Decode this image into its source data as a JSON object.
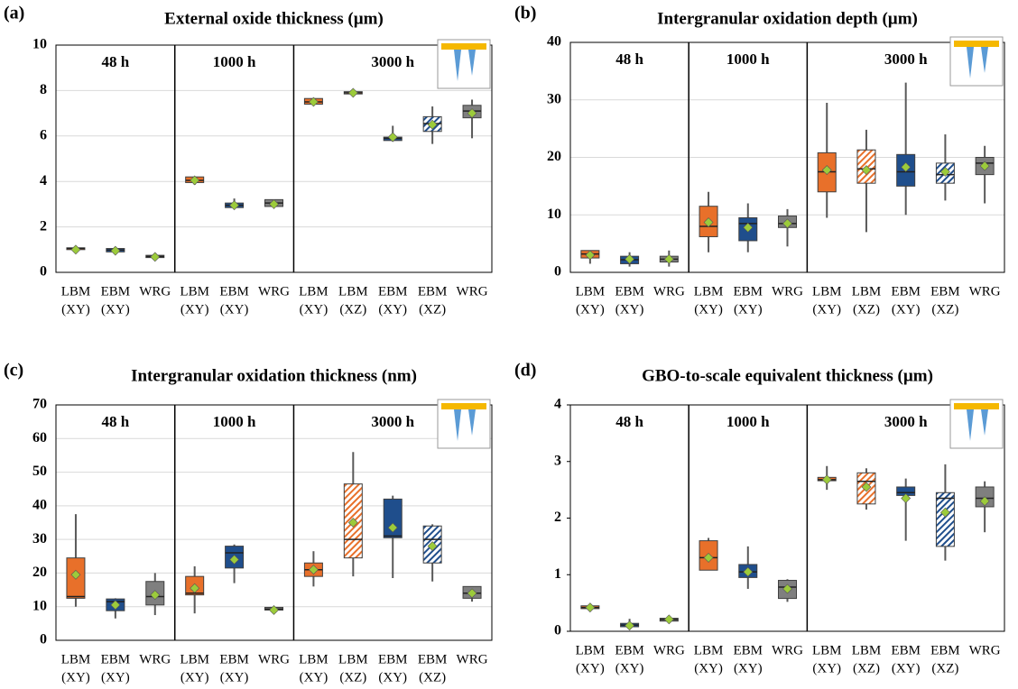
{
  "chart_data": [
    {
      "type": "box",
      "label": "(a)",
      "title": "External oxide thickness (µm)",
      "ylim": [
        0,
        10
      ],
      "yticks": [
        0,
        2,
        4,
        6,
        8,
        10
      ],
      "grid": true,
      "mean_color": "#9ccb3b",
      "groups": [
        {
          "label": "48 h",
          "boxes": [
            {
              "category": [
                "LBM",
                "(XY)"
              ],
              "color": "#e8702a",
              "hatched": false,
              "min": 1.0,
              "q1": 1.0,
              "median": 1.05,
              "q3": 1.08,
              "max": 1.08,
              "mean": 1.0
            },
            {
              "category": [
                "EBM",
                "(XY)"
              ],
              "color": "#1f4e8c",
              "hatched": false,
              "min": 0.88,
              "q1": 0.9,
              "median": 0.98,
              "q3": 1.05,
              "max": 1.07,
              "mean": 0.95
            },
            {
              "category": [
                "WRG"
              ],
              "color": "#7f7f7f",
              "hatched": false,
              "min": 0.63,
              "q1": 0.65,
              "median": 0.7,
              "q3": 0.75,
              "max": 0.77,
              "mean": 0.68
            }
          ]
        },
        {
          "label": "1000 h",
          "boxes": [
            {
              "category": [
                "LBM",
                "(XY)"
              ],
              "color": "#e8702a",
              "hatched": false,
              "min": 3.85,
              "q1": 3.95,
              "median": 4.05,
              "q3": 4.2,
              "max": 4.2,
              "mean": 4.05
            },
            {
              "category": [
                "EBM",
                "(XY)"
              ],
              "color": "#1f4e8c",
              "hatched": false,
              "min": 2.8,
              "q1": 2.85,
              "median": 2.95,
              "q3": 3.05,
              "max": 3.25,
              "mean": 2.95
            },
            {
              "category": [
                "WRG"
              ],
              "color": "#7f7f7f",
              "hatched": false,
              "min": 2.85,
              "q1": 2.9,
              "median": 3.05,
              "q3": 3.2,
              "max": 3.2,
              "mean": 3.0
            }
          ]
        },
        {
          "label": "3000 h",
          "boxes": [
            {
              "category": [
                "LBM",
                "(XY)"
              ],
              "color": "#e8702a",
              "hatched": false,
              "min": 7.35,
              "q1": 7.4,
              "median": 7.5,
              "q3": 7.65,
              "max": 7.65,
              "mean": 7.5
            },
            {
              "category": [
                "LBM",
                "(XZ)"
              ],
              "color": "#e8702a",
              "hatched": true,
              "min": 7.85,
              "q1": 7.85,
              "median": 7.9,
              "q3": 7.95,
              "max": 7.95,
              "mean": 7.9
            },
            {
              "category": [
                "EBM",
                "(XY)"
              ],
              "color": "#1f4e8c",
              "hatched": false,
              "min": 5.75,
              "q1": 5.8,
              "median": 5.9,
              "q3": 5.95,
              "max": 6.45,
              "mean": 5.95
            },
            {
              "category": [
                "EBM",
                "(XZ)"
              ],
              "color": "#1f4e8c",
              "hatched": true,
              "min": 5.65,
              "q1": 6.2,
              "median": 6.55,
              "q3": 6.85,
              "max": 7.3,
              "mean": 6.5
            },
            {
              "category": [
                "WRG"
              ],
              "color": "#7f7f7f",
              "hatched": false,
              "min": 5.9,
              "q1": 6.8,
              "median": 7.1,
              "q3": 7.35,
              "max": 7.6,
              "mean": 7.0
            }
          ]
        }
      ]
    },
    {
      "type": "box",
      "label": "(b)",
      "title": "Intergranular oxidation depth (µm)",
      "ylim": [
        0,
        40
      ],
      "yticks": [
        0,
        10,
        20,
        30,
        40
      ],
      "grid": true,
      "mean_color": "#9ccb3b",
      "groups": [
        {
          "label": "48 h",
          "boxes": [
            {
              "category": [
                "LBM",
                "(XY)"
              ],
              "color": "#e8702a",
              "hatched": false,
              "min": 1.5,
              "q1": 2.5,
              "median": 3.2,
              "q3": 3.8,
              "max": 3.8,
              "mean": 3.0
            },
            {
              "category": [
                "EBM",
                "(XY)"
              ],
              "color": "#1f4e8c",
              "hatched": false,
              "min": 1.0,
              "q1": 1.5,
              "median": 2.2,
              "q3": 2.8,
              "max": 3.5,
              "mean": 2.3
            },
            {
              "category": [
                "WRG"
              ],
              "color": "#7f7f7f",
              "hatched": false,
              "min": 1.0,
              "q1": 1.8,
              "median": 2.3,
              "q3": 2.8,
              "max": 3.8,
              "mean": 2.3
            }
          ]
        },
        {
          "label": "1000 h",
          "boxes": [
            {
              "category": [
                "LBM",
                "(XY)"
              ],
              "color": "#e8702a",
              "hatched": false,
              "min": 3.5,
              "q1": 6.2,
              "median": 8,
              "q3": 11.5,
              "max": 14,
              "mean": 8.7
            },
            {
              "category": [
                "EBM",
                "(XY)"
              ],
              "color": "#1f4e8c",
              "hatched": false,
              "min": 3.5,
              "q1": 5.5,
              "median": 8.5,
              "q3": 9.5,
              "max": 12,
              "mean": 7.8
            },
            {
              "category": [
                "WRG"
              ],
              "color": "#7f7f7f",
              "hatched": false,
              "min": 4.5,
              "q1": 7.8,
              "median": 8.5,
              "q3": 9.8,
              "max": 11,
              "mean": 8.5
            }
          ]
        },
        {
          "label": "3000 h",
          "boxes": [
            {
              "category": [
                "LBM",
                "(XY)"
              ],
              "color": "#e8702a",
              "hatched": false,
              "min": 9.5,
              "q1": 14,
              "median": 17.5,
              "q3": 20.8,
              "max": 29.5,
              "mean": 17.8
            },
            {
              "category": [
                "LBM",
                "(XZ)"
              ],
              "color": "#e8702a",
              "hatched": true,
              "min": 7,
              "q1": 15.5,
              "median": 18,
              "q3": 21.3,
              "max": 24.8,
              "mean": 17.8
            },
            {
              "category": [
                "EBM",
                "(XY)"
              ],
              "color": "#1f4e8c",
              "hatched": false,
              "min": 10,
              "q1": 15,
              "median": 17.5,
              "q3": 20.5,
              "max": 33,
              "mean": 18.3
            },
            {
              "category": [
                "EBM",
                "(XZ)"
              ],
              "color": "#1f4e8c",
              "hatched": true,
              "min": 12.5,
              "q1": 15.5,
              "median": 17,
              "q3": 19,
              "max": 24,
              "mean": 17.5
            },
            {
              "category": [
                "WRG"
              ],
              "color": "#7f7f7f",
              "hatched": false,
              "min": 12,
              "q1": 17,
              "median": 19,
              "q3": 20,
              "max": 22,
              "mean": 18.5
            }
          ]
        }
      ]
    },
    {
      "type": "box",
      "label": "(c)",
      "title": "Intergranular oxidation thickness (nm)",
      "ylim": [
        0,
        70
      ],
      "yticks": [
        0,
        10,
        20,
        30,
        40,
        50,
        60,
        70
      ],
      "grid": true,
      "mean_color": "#9ccb3b",
      "groups": [
        {
          "label": "48 h",
          "boxes": [
            {
              "category": [
                "LBM",
                "(XY)"
              ],
              "color": "#e8702a",
              "hatched": false,
              "min": 10,
              "q1": 12.5,
              "median": 13,
              "q3": 24.5,
              "max": 37.5,
              "mean": 19.5
            },
            {
              "category": [
                "EBM",
                "(XY)"
              ],
              "color": "#1f4e8c",
              "hatched": false,
              "min": 6.5,
              "q1": 8.8,
              "median": 11.5,
              "q3": 12.3,
              "max": 12.5,
              "mean": 10.5
            },
            {
              "category": [
                "WRG"
              ],
              "color": "#7f7f7f",
              "hatched": false,
              "min": 7.5,
              "q1": 10.5,
              "median": 13,
              "q3": 17.5,
              "max": 20,
              "mean": 13.5
            }
          ]
        },
        {
          "label": "1000 h",
          "boxes": [
            {
              "category": [
                "LBM",
                "(XY)"
              ],
              "color": "#e8702a",
              "hatched": false,
              "min": 8,
              "q1": 13.5,
              "median": 14,
              "q3": 19,
              "max": 22,
              "mean": 15.5
            },
            {
              "category": [
                "EBM",
                "(XY)"
              ],
              "color": "#1f4e8c",
              "hatched": false,
              "min": 17,
              "q1": 21.5,
              "median": 26,
              "q3": 28,
              "max": 28.5,
              "mean": 24
            },
            {
              "category": [
                "WRG"
              ],
              "color": "#7f7f7f",
              "hatched": false,
              "min": 8.5,
              "q1": 9,
              "median": 9.3,
              "q3": 9.8,
              "max": 9.8,
              "mean": 9
            }
          ]
        },
        {
          "label": "3000 h",
          "boxes": [
            {
              "category": [
                "LBM",
                "(XY)"
              ],
              "color": "#e8702a",
              "hatched": false,
              "min": 16,
              "q1": 19,
              "median": 21,
              "q3": 23,
              "max": 26.5,
              "mean": 21
            },
            {
              "category": [
                "LBM",
                "(XZ)"
              ],
              "color": "#e8702a",
              "hatched": true,
              "min": 19,
              "q1": 24.5,
              "median": 30,
              "q3": 46.5,
              "max": 56,
              "mean": 35
            },
            {
              "category": [
                "EBM",
                "(XY)"
              ],
              "color": "#1f4e8c",
              "hatched": false,
              "min": 18.5,
              "q1": 30.5,
              "median": 31,
              "q3": 42,
              "max": 43,
              "mean": 33.5
            },
            {
              "category": [
                "EBM",
                "(XZ)"
              ],
              "color": "#1f4e8c",
              "hatched": true,
              "min": 17.5,
              "q1": 23,
              "median": 30,
              "q3": 34,
              "max": 34.5,
              "mean": 28
            },
            {
              "category": [
                "WRG"
              ],
              "color": "#7f7f7f",
              "hatched": false,
              "min": 11.5,
              "q1": 12.5,
              "median": 14,
              "q3": 16,
              "max": 16,
              "mean": 14
            }
          ]
        }
      ]
    },
    {
      "type": "box",
      "label": "(d)",
      "title": "GBO-to-scale equivalent thickness (µm)",
      "ylim": [
        0,
        4
      ],
      "yticks": [
        0,
        1,
        2,
        3,
        4
      ],
      "grid": false,
      "mean_color": "#9ccb3b",
      "groups": [
        {
          "label": "48 h",
          "boxes": [
            {
              "category": [
                "LBM",
                "(XY)"
              ],
              "color": "#e8702a",
              "hatched": false,
              "min": 0.38,
              "q1": 0.4,
              "median": 0.42,
              "q3": 0.45,
              "max": 0.47,
              "mean": 0.42
            },
            {
              "category": [
                "EBM",
                "(XY)"
              ],
              "color": "#1f4e8c",
              "hatched": false,
              "min": 0.03,
              "q1": 0.08,
              "median": 0.11,
              "q3": 0.14,
              "max": 0.22,
              "mean": 0.1
            },
            {
              "category": [
                "WRG"
              ],
              "color": "#7f7f7f",
              "hatched": false,
              "min": 0.17,
              "q1": 0.18,
              "median": 0.21,
              "q3": 0.23,
              "max": 0.24,
              "mean": 0.21
            }
          ]
        },
        {
          "label": "1000 h",
          "boxes": [
            {
              "category": [
                "LBM",
                "(XY)"
              ],
              "color": "#e8702a",
              "hatched": false,
              "min": 1.08,
              "q1": 1.08,
              "median": 1.3,
              "q3": 1.6,
              "max": 1.65,
              "mean": 1.3
            },
            {
              "category": [
                "EBM",
                "(XY)"
              ],
              "color": "#1f4e8c",
              "hatched": false,
              "min": 0.75,
              "q1": 0.95,
              "median": 1.05,
              "q3": 1.18,
              "max": 1.5,
              "mean": 1.05
            },
            {
              "category": [
                "WRG"
              ],
              "color": "#7f7f7f",
              "hatched": false,
              "min": 0.52,
              "q1": 0.58,
              "median": 0.78,
              "q3": 0.9,
              "max": 0.92,
              "mean": 0.75
            }
          ]
        },
        {
          "label": "3000 h",
          "boxes": [
            {
              "category": [
                "LBM",
                "(XY)"
              ],
              "color": "#e8702a",
              "hatched": false,
              "min": 2.5,
              "q1": 2.66,
              "median": 2.68,
              "q3": 2.72,
              "max": 2.92,
              "mean": 2.68
            },
            {
              "category": [
                "LBM",
                "(XZ)"
              ],
              "color": "#e8702a",
              "hatched": true,
              "min": 2.15,
              "q1": 2.25,
              "median": 2.65,
              "q3": 2.8,
              "max": 2.88,
              "mean": 2.55
            },
            {
              "category": [
                "EBM",
                "(XY)"
              ],
              "color": "#1f4e8c",
              "hatched": false,
              "min": 1.6,
              "q1": 2.4,
              "median": 2.45,
              "q3": 2.55,
              "max": 2.7,
              "mean": 2.35
            },
            {
              "category": [
                "EBM",
                "(XZ)"
              ],
              "color": "#1f4e8c",
              "hatched": true,
              "min": 1.25,
              "q1": 1.5,
              "median": 2.35,
              "q3": 2.45,
              "max": 2.95,
              "mean": 2.1
            },
            {
              "category": [
                "WRG"
              ],
              "color": "#7f7f7f",
              "hatched": false,
              "min": 1.75,
              "q1": 2.2,
              "median": 2.35,
              "q3": 2.55,
              "max": 2.65,
              "mean": 2.3
            }
          ]
        }
      ]
    }
  ]
}
